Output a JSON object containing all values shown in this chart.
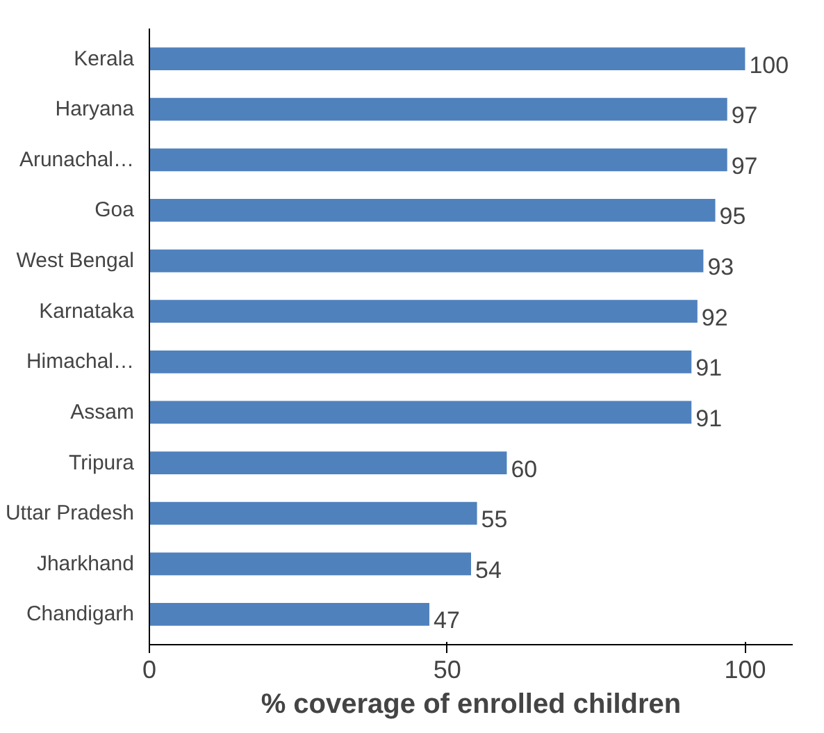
{
  "chart_data": {
    "type": "bar",
    "orientation": "horizontal",
    "xlabel": "% coverage of enrolled children",
    "categories": [
      "Kerala",
      "Haryana",
      "Arunachal…",
      "Goa",
      "West Bengal",
      "Karnataka",
      "Himachal…",
      "Assam",
      "Tripura",
      "Uttar Pradesh",
      "Jharkhand",
      "Chandigarh"
    ],
    "values": [
      100,
      97,
      97,
      95,
      93,
      92,
      91,
      91,
      60,
      55,
      54,
      47
    ],
    "color": "#4f81bd",
    "xlim": [
      0,
      108
    ],
    "xticks": [
      0,
      50,
      100
    ],
    "grid": false,
    "data_labels": true
  }
}
